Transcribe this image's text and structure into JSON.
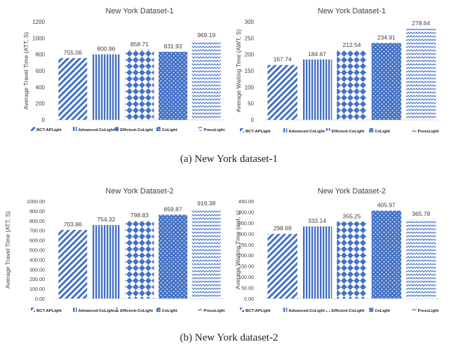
{
  "colors": {
    "bar": "#4472C4",
    "axis": "#595959",
    "label": "#404040",
    "grid": "#d9d9d9"
  },
  "legend_labels": [
    "BCT-APLight",
    "Advanced-CoLight",
    "Efficient-CoLight",
    "CoLight",
    "PressLight"
  ],
  "captions": {
    "a": "(a) New York dataset-1",
    "b": "(b) New York dataset-2"
  },
  "chart_data": [
    {
      "type": "bar",
      "title": "New York Dataset-1",
      "xlabel": "",
      "ylabel": "Average Travel Time (ATT, S)",
      "categories": [
        "BCT-APLight",
        "Advanced-CoLight",
        "Efficient-CoLight",
        "CoLight",
        "PressLight"
      ],
      "values": [
        755.06,
        800.96,
        858.71,
        831.93,
        969.19
      ],
      "value_labels": [
        "755.06",
        "800.96",
        "858.71",
        "831.93",
        "969.19"
      ],
      "yticks": [
        "0",
        "200",
        "400",
        "600",
        "800",
        "1000",
        "1200"
      ],
      "ylim": [
        0,
        1200
      ],
      "grid": false,
      "legend": "bottom"
    },
    {
      "type": "bar",
      "title": "New York Dataset-1",
      "xlabel": "",
      "ylabel": "Average Waiting Time (AWT, S)",
      "categories": [
        "BCT-APLight",
        "Advanced-CoLight",
        "Efficient-CoLight",
        "CoLight",
        "PressLight"
      ],
      "values": [
        167.74,
        184.67,
        212.54,
        234.91,
        278.64
      ],
      "value_labels": [
        "167.74",
        "184.67",
        "212.54",
        "234.91",
        "278.64"
      ],
      "yticks": [
        "0",
        "50",
        "100",
        "150",
        "200",
        "250",
        "300"
      ],
      "ylim": [
        0,
        300
      ],
      "grid": false,
      "legend": "bottom"
    },
    {
      "type": "bar",
      "title": "New York Dataset-2",
      "xlabel": "",
      "ylabel": "Average Travel Time (ATT, S)",
      "categories": [
        "BCT-APLight",
        "Advanced-CoLight",
        "Efficient-CoLight",
        "CoLight",
        "PressLight"
      ],
      "values": [
        703.86,
        754.32,
        798.83,
        859.87,
        919.38
      ],
      "value_labels": [
        "703.86",
        "754.32",
        "798.83",
        "859.87",
        "919.38"
      ],
      "yticks": [
        "0.00",
        "100.00",
        "200.00",
        "300.00",
        "400.00",
        "500.00",
        "600.00",
        "700.00",
        "800.00",
        "900.00",
        "1000.00"
      ],
      "ylim": [
        0,
        1000
      ],
      "grid": false,
      "legend": "bottom"
    },
    {
      "type": "bar",
      "title": "New York Dataset-2",
      "xlabel": "",
      "ylabel": "Average Waiting Time (awt, s)",
      "categories": [
        "BCT-APLight",
        "Advanced-CoLight",
        "Efficient-CoLight",
        "CoLight",
        "PressLight"
      ],
      "values": [
        298.69,
        333.14,
        355.25,
        405.97,
        365.78
      ],
      "value_labels": [
        "298.69",
        "333.14",
        "355.25",
        "405.97",
        "365.78"
      ],
      "yticks": [
        "0.00",
        "50.00",
        "100.00",
        "150.00",
        "200.00",
        "250.00",
        "300.00",
        "350.00",
        "400.00",
        "450.00"
      ],
      "ylim": [
        0,
        450
      ],
      "grid": false,
      "legend": "bottom"
    }
  ]
}
